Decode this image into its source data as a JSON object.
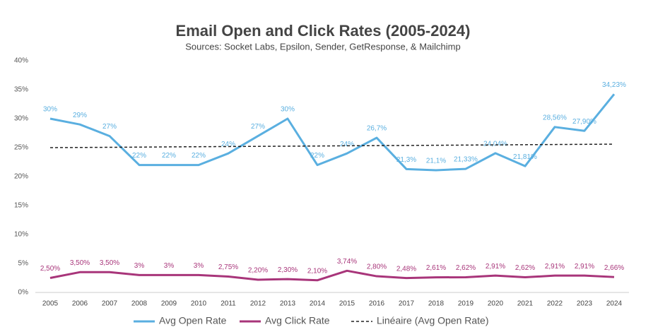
{
  "chart_data": {
    "type": "line",
    "title": "Email Open and Click Rates (2005-2024)",
    "subtitle": "Sources: Socket Labs, Epsilon, Sender, GetResponse, & Mailchimp",
    "categories": [
      "2005",
      "2006",
      "2007",
      "2008",
      "2009",
      "2010",
      "2011",
      "2012",
      "2013",
      "2014",
      "2015",
      "2016",
      "2017",
      "2018",
      "2019",
      "2020",
      "2021",
      "2022",
      "2023",
      "2024"
    ],
    "ylim": [
      0,
      40
    ],
    "yticks": [
      {
        "value": 0,
        "label": "0%"
      },
      {
        "value": 5,
        "label": "5%"
      },
      {
        "value": 10,
        "label": "10%"
      },
      {
        "value": 15,
        "label": "15%"
      },
      {
        "value": 20,
        "label": "20%"
      },
      {
        "value": 25,
        "label": "25%"
      },
      {
        "value": 30,
        "label": "30%"
      },
      {
        "value": 35,
        "label": "35%"
      },
      {
        "value": 40,
        "label": "40%"
      }
    ],
    "grid": false,
    "legend": "bottom",
    "series": [
      {
        "name": "Avg Open Rate",
        "color": "#5aafe0",
        "dashed": false,
        "values": [
          30,
          29,
          27,
          22,
          22,
          22,
          24,
          27,
          30,
          22,
          24,
          26.7,
          21.3,
          21.1,
          21.33,
          24.04,
          21.81,
          28.56,
          27.9,
          34.23
        ],
        "value_labels": [
          "30%",
          "29%",
          "27%",
          "22%",
          "22%",
          "22%",
          "24%",
          "27%",
          "30%",
          "22%",
          "24%",
          "26,7%",
          "21,3%",
          "21,1%",
          "21,33%",
          "24,04%",
          "21,81%",
          "28,56%",
          "27,90%",
          "34,23%"
        ]
      },
      {
        "name": "Avg Click Rate",
        "color": "#a8357a",
        "dashed": false,
        "values": [
          2.5,
          3.5,
          3.5,
          3,
          3,
          3,
          2.75,
          2.2,
          2.3,
          2.1,
          3.74,
          2.8,
          2.48,
          2.61,
          2.62,
          2.91,
          2.62,
          2.91,
          2.91,
          2.66
        ],
        "value_labels": [
          "2,50%",
          "3,50%",
          "3,50%",
          "3%",
          "3%",
          "3%",
          "2,75%",
          "2,20%",
          "2,30%",
          "2,10%",
          "3,74%",
          "2,80%",
          "2,48%",
          "2,61%",
          "2,62%",
          "2,91%",
          "2,62%",
          "2,91%",
          "2,91%",
          "2,66%"
        ]
      },
      {
        "name": "Linéaire (Avg Open Rate)",
        "color": "#222222",
        "dashed": true,
        "values": [
          25.0,
          25.03,
          25.06,
          25.09,
          25.13,
          25.16,
          25.19,
          25.22,
          25.25,
          25.28,
          25.32,
          25.35,
          25.38,
          25.41,
          25.44,
          25.47,
          25.51,
          25.54,
          25.57,
          25.6
        ]
      }
    ]
  }
}
